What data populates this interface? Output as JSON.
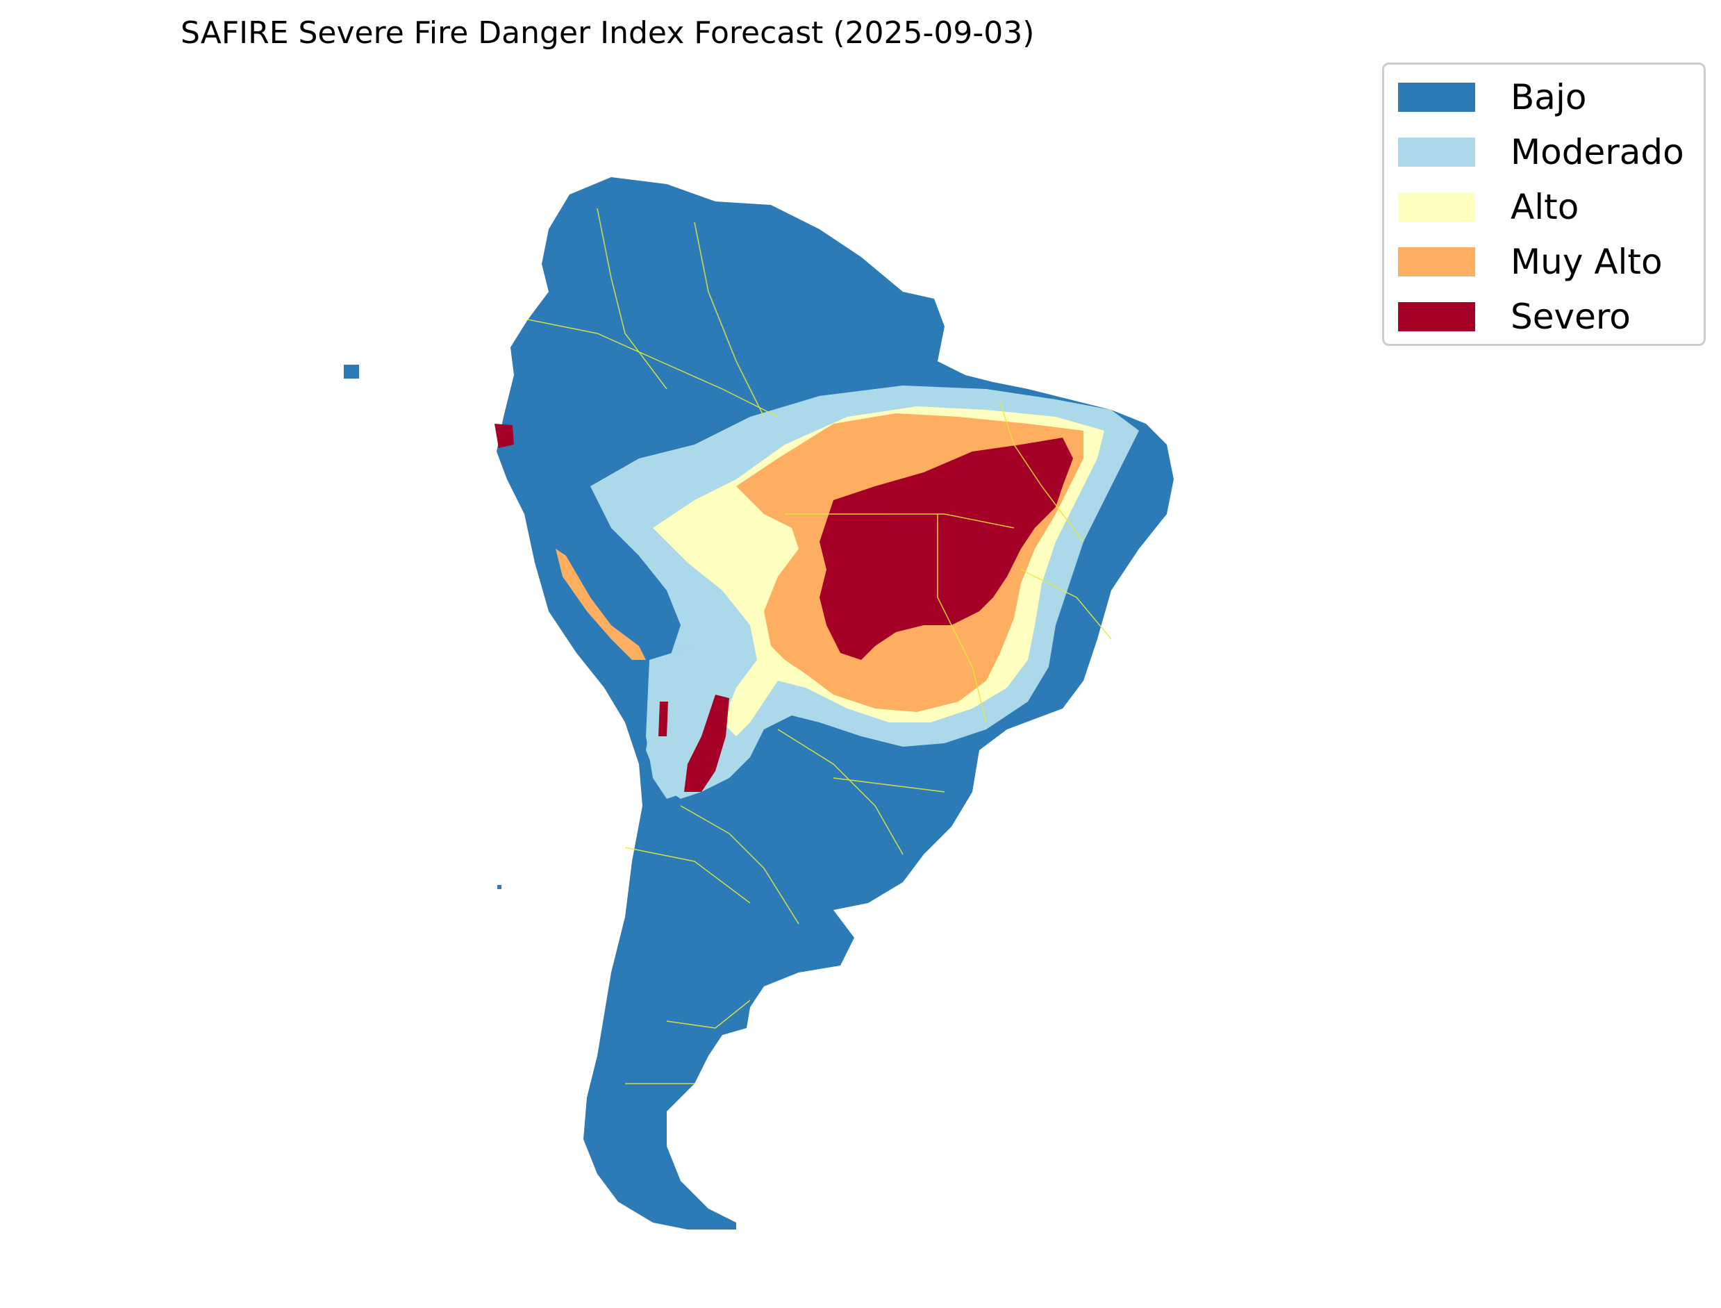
{
  "title": "SAFIRE Severe Fire Danger Index Forecast (2025-09-03)",
  "legend": [
    {
      "label": "Bajo",
      "color": "#2c7bb6"
    },
    {
      "label": "Moderado",
      "color": "#abd9e9"
    },
    {
      "label": "Alto",
      "color": "#ffffbf"
    },
    {
      "label": "Muy Alto",
      "color": "#fdae61"
    },
    {
      "label": "Severo",
      "color": "#a50026"
    }
  ],
  "colors": {
    "boundary": "#e8e83a",
    "background": "#ffffff"
  },
  "map": {
    "region": "South America",
    "variable": "Severe Fire Danger Index",
    "forecast_date": "2025-09-03"
  }
}
